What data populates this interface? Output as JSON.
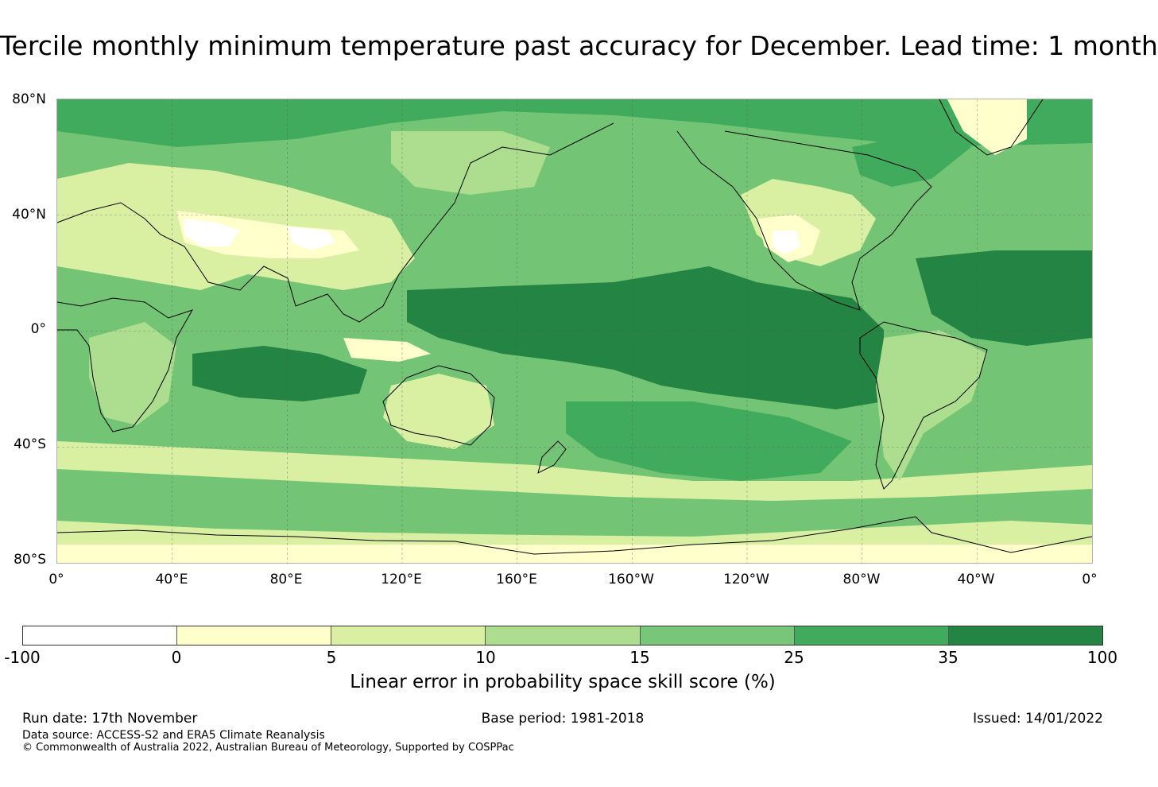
{
  "title": "Tercile monthly minimum temperature past accuracy for December. Lead time: 1 month",
  "map": {
    "lat_ticks": [
      "80°N",
      "40°N",
      "0°",
      "40°S",
      "80°S"
    ],
    "lon_ticks": [
      "0°",
      "40°E",
      "80°E",
      "120°E",
      "160°E",
      "160°W",
      "120°W",
      "80°W",
      "40°W",
      "0°"
    ]
  },
  "colorbar": {
    "ticks": [
      "-100",
      "0",
      "5",
      "10",
      "15",
      "25",
      "35",
      "100"
    ],
    "colors": [
      "#ffffff",
      "#ffffcc",
      "#d9f0a3",
      "#addd8e",
      "#78c679",
      "#41ab5d",
      "#238443"
    ],
    "label": "Linear error in probability space skill score (%)"
  },
  "footer": {
    "run_date": "Run date: 17th November",
    "base_period": "Base period: 1981-2018",
    "issued": "Issued: 14/01/2022",
    "data_source": "Data source: ACCESS-S2 and ERA5 Climate Reanalysis",
    "copyright": "© Commonwealth of Australia 2022, Australian Bureau of Meteorology, Supported by COSPPac"
  }
}
